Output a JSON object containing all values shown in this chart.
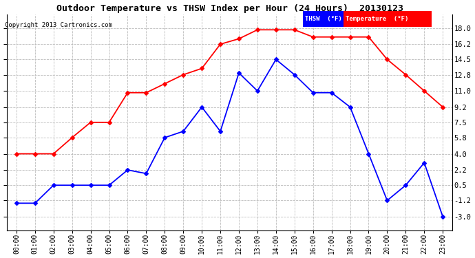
{
  "title": "Outdoor Temperature vs THSW Index per Hour (24 Hours)  20130123",
  "copyright": "Copyright 2013 Cartronics.com",
  "hours": [
    "00:00",
    "01:00",
    "02:00",
    "03:00",
    "04:00",
    "05:00",
    "06:00",
    "07:00",
    "08:00",
    "09:00",
    "10:00",
    "11:00",
    "12:00",
    "13:00",
    "14:00",
    "15:00",
    "16:00",
    "17:00",
    "18:00",
    "19:00",
    "20:00",
    "21:00",
    "22:00",
    "23:00"
  ],
  "temperature": [
    4.0,
    4.0,
    4.0,
    5.8,
    7.5,
    7.5,
    10.8,
    10.8,
    11.8,
    12.8,
    13.5,
    16.2,
    16.8,
    17.8,
    17.8,
    17.8,
    17.0,
    17.0,
    17.0,
    17.0,
    14.5,
    12.8,
    11.0,
    9.2
  ],
  "thsw": [
    -1.5,
    -1.5,
    0.5,
    0.5,
    0.5,
    0.5,
    2.2,
    1.8,
    5.8,
    6.5,
    9.2,
    6.5,
    13.0,
    11.0,
    14.5,
    12.8,
    10.8,
    10.8,
    9.2,
    4.0,
    -1.2,
    0.5,
    3.0,
    -3.0
  ],
  "temp_color": "#ff0000",
  "thsw_color": "#0000ff",
  "bg_color": "#ffffff",
  "grid_color": "#bbbbbb",
  "ymin": -4.5,
  "ymax": 19.5,
  "yticks": [
    18.0,
    16.2,
    14.5,
    12.8,
    11.0,
    9.2,
    7.5,
    5.8,
    4.0,
    2.2,
    0.5,
    -1.2,
    -3.0
  ],
  "legend_thsw_label": "THSW  (°F)",
  "legend_temp_label": "Temperature  (°F)"
}
